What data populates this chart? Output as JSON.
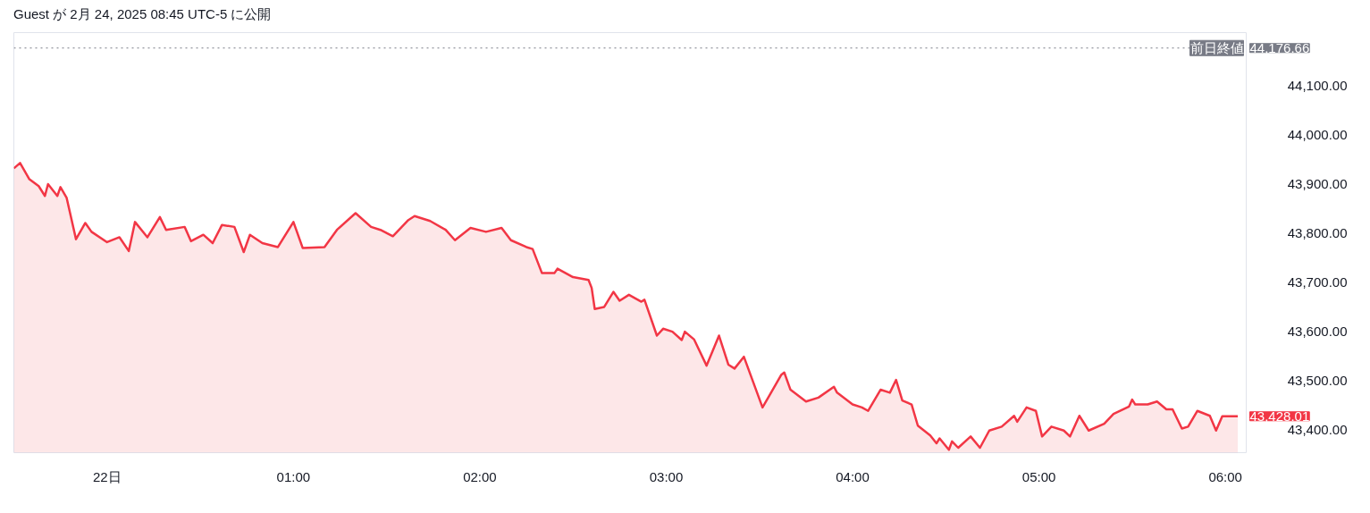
{
  "chart_data": {
    "type": "area",
    "title": "Guest が 2月 24, 2025 08:45 UTC-5 に公開",
    "x": [
      "2025-02-21T23:30",
      "2025-02-21T23:32",
      "2025-02-21T23:35",
      "2025-02-21T23:38",
      "2025-02-21T23:40",
      "2025-02-21T23:41",
      "2025-02-21T23:44",
      "2025-02-21T23:45",
      "2025-02-21T23:47",
      "2025-02-21T23:50",
      "2025-02-21T23:53",
      "2025-02-21T23:55",
      "2025-02-22T00:00",
      "2025-02-22T00:04",
      "2025-02-22T00:07",
      "2025-02-22T00:09",
      "2025-02-22T00:13",
      "2025-02-22T00:17",
      "2025-02-22T00:19",
      "2025-02-22T00:25",
      "2025-02-22T00:27",
      "2025-02-22T00:31",
      "2025-02-22T00:34",
      "2025-02-22T00:37",
      "2025-02-22T00:41",
      "2025-02-22T00:44",
      "2025-02-22T00:46",
      "2025-02-22T00:50",
      "2025-02-22T00:55",
      "2025-02-22T01:00",
      "2025-02-22T01:03",
      "2025-02-22T01:10",
      "2025-02-22T01:14",
      "2025-02-22T01:20",
      "2025-02-22T01:25",
      "2025-02-22T01:28",
      "2025-02-22T01:32",
      "2025-02-22T01:37",
      "2025-02-22T01:39",
      "2025-02-22T01:44",
      "2025-02-22T01:49",
      "2025-02-22T01:52",
      "2025-02-22T01:57",
      "2025-02-22T02:02",
      "2025-02-22T02:07",
      "2025-02-22T02:10",
      "2025-02-22T02:15",
      "2025-02-22T02:17",
      "2025-02-22T02:20",
      "2025-02-22T02:24",
      "2025-02-22T02:25",
      "2025-02-22T02:30",
      "2025-02-22T02:35",
      "2025-02-22T02:36",
      "2025-02-22T02:37",
      "2025-02-22T02:40",
      "2025-02-22T02:43",
      "2025-02-22T02:45",
      "2025-02-22T02:48",
      "2025-02-22T02:52",
      "2025-02-22T02:53",
      "2025-02-22T02:57",
      "2025-02-22T02:59",
      "2025-02-22T03:02",
      "2025-02-22T03:05",
      "2025-02-22T03:06",
      "2025-02-22T03:09",
      "2025-02-22T03:13",
      "2025-02-22T03:17",
      "2025-02-22T03:20",
      "2025-02-22T03:22",
      "2025-02-22T03:25",
      "2025-02-22T03:31",
      "2025-02-22T03:33",
      "2025-02-22T03:37",
      "2025-02-22T03:38",
      "2025-02-22T03:40",
      "2025-02-22T03:45",
      "2025-02-22T03:49",
      "2025-02-22T03:54",
      "2025-02-22T03:55",
      "2025-02-22T04:00",
      "2025-02-22T04:03",
      "2025-02-22T04:05",
      "2025-02-22T04:09",
      "2025-02-22T04:12",
      "2025-02-22T04:14",
      "2025-02-22T04:16",
      "2025-02-22T04:19",
      "2025-02-22T04:21",
      "2025-02-22T04:25",
      "2025-02-22T04:27",
      "2025-02-22T04:28",
      "2025-02-22T04:31",
      "2025-02-22T04:32",
      "2025-02-22T04:34",
      "2025-02-22T04:38",
      "2025-02-22T04:41",
      "2025-02-22T04:44",
      "2025-02-22T04:48",
      "2025-02-22T04:52",
      "2025-02-22T04:53",
      "2025-02-22T04:56",
      "2025-02-22T04:59",
      "2025-02-22T05:01",
      "2025-02-22T05:04",
      "2025-02-22T05:08",
      "2025-02-22T05:10",
      "2025-02-22T05:13",
      "2025-02-22T05:16",
      "2025-02-22T05:21",
      "2025-02-22T05:24",
      "2025-02-22T05:29",
      "2025-02-22T05:30",
      "2025-02-22T05:31",
      "2025-02-22T05:35",
      "2025-02-22T05:38",
      "2025-02-22T05:41",
      "2025-02-22T05:43",
      "2025-02-22T05:46",
      "2025-02-22T05:48",
      "2025-02-22T05:51",
      "2025-02-22T05:55",
      "2025-02-22T05:57",
      "2025-02-22T05:59",
      "2025-02-22T06:04"
    ],
    "series": [
      {
        "color": "#f23645",
        "values": [
          43932,
          43943,
          43910,
          43896,
          43876,
          43900,
          43876,
          43894,
          43872,
          43788,
          43821,
          43803,
          43782,
          43792,
          43764,
          43823,
          43792,
          43833,
          43807,
          43813,
          43784,
          43797,
          43780,
          43817,
          43813,
          43762,
          43797,
          43780,
          43772,
          43823,
          43770,
          43772,
          43807,
          43841,
          43813,
          43807,
          43794,
          43827,
          43835,
          43825,
          43807,
          43786,
          43811,
          43803,
          43811,
          43786,
          43772,
          43768,
          43719,
          43719,
          43728,
          43711,
          43705,
          43689,
          43646,
          43650,
          43681,
          43663,
          43675,
          43661,
          43665,
          43592,
          43606,
          43600,
          43583,
          43600,
          43584,
          43531,
          43592,
          43533,
          43525,
          43549,
          43446,
          43468,
          43512,
          43517,
          43482,
          43458,
          43466,
          43488,
          43476,
          43452,
          43446,
          43439,
          43482,
          43476,
          43502,
          43460,
          43452,
          43409,
          43389,
          43373,
          43383,
          43360,
          43377,
          43364,
          43387,
          43364,
          43399,
          43407,
          43429,
          43417,
          43446,
          43439,
          43387,
          43407,
          43399,
          43387,
          43429,
          43399,
          43413,
          43433,
          43448,
          43462,
          43452,
          43452,
          43458,
          43442,
          43442,
          43403,
          43407,
          43439,
          43429,
          43399,
          43428.01,
          43428.01
        ]
      }
    ],
    "xlim": [
      "2025-02-21T23:30",
      "2025-02-22T06:07"
    ],
    "ylim": [
      43354,
      44208
    ],
    "xticks": [
      {
        "value": "2025-02-22T00:00",
        "label": "22日"
      },
      {
        "value": "2025-02-22T01:00",
        "label": "01:00"
      },
      {
        "value": "2025-02-22T02:00",
        "label": "02:00"
      },
      {
        "value": "2025-02-22T03:00",
        "label": "03:00"
      },
      {
        "value": "2025-02-22T04:00",
        "label": "04:00"
      },
      {
        "value": "2025-02-22T05:00",
        "label": "05:00"
      },
      {
        "value": "2025-02-22T06:00",
        "label": "06:00"
      }
    ],
    "yticks": [
      {
        "value": 43400,
        "label": "43,400.00"
      },
      {
        "value": 43500,
        "label": "43,500.00"
      },
      {
        "value": 43600,
        "label": "43,600.00"
      },
      {
        "value": 43700,
        "label": "43,700.00"
      },
      {
        "value": 43800,
        "label": "43,800.00"
      },
      {
        "value": 43900,
        "label": "43,900.00"
      },
      {
        "value": 44000,
        "label": "44,000.00"
      },
      {
        "value": 44100,
        "label": "44,100.00"
      }
    ],
    "ref_lines": [
      {
        "axis": "y",
        "value": 44176.66,
        "label": "前日終値",
        "color": "#787b86",
        "line_style": "dotted"
      }
    ],
    "annotations": [
      "44,176.66",
      "43,428.01"
    ],
    "grid": false
  }
}
